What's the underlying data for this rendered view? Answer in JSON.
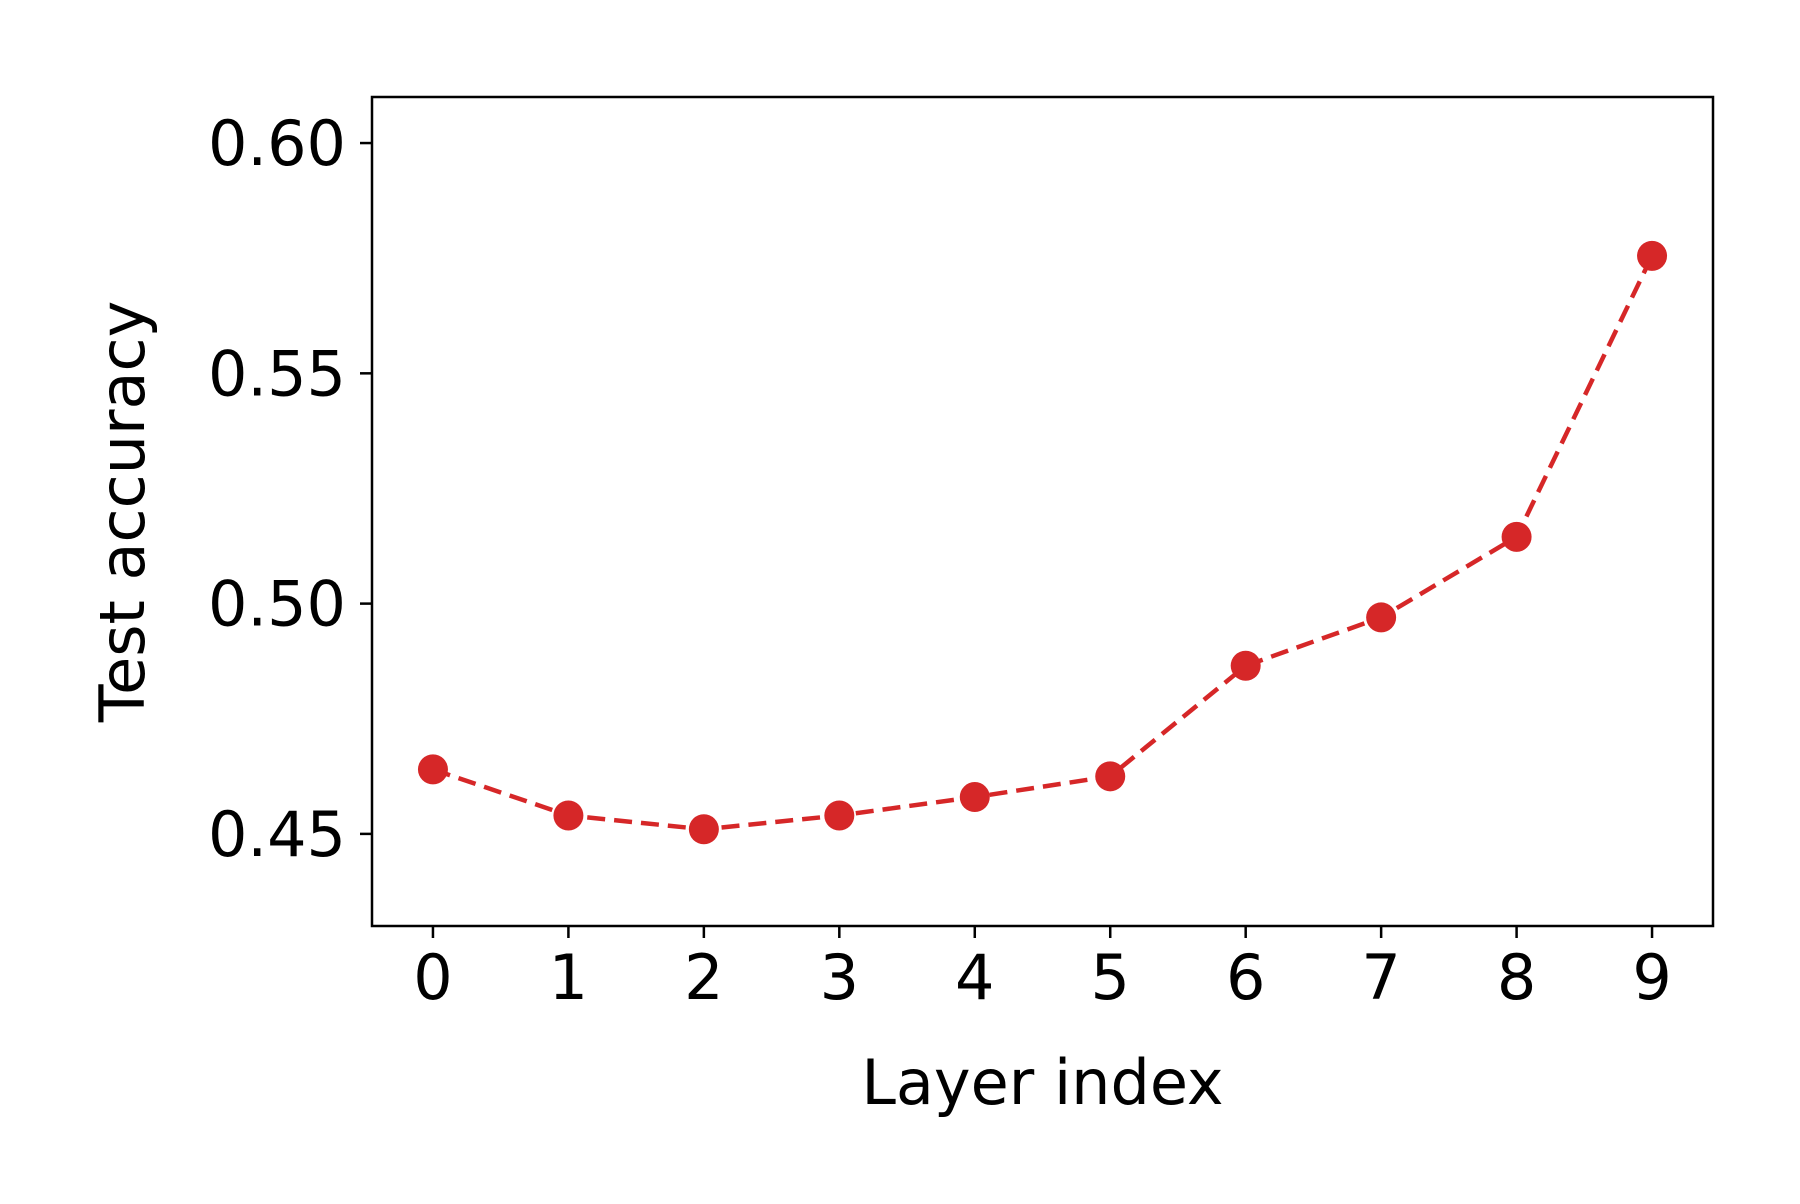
{
  "chart_data": {
    "type": "line",
    "title": "",
    "xlabel": "Layer index",
    "ylabel": "Test accuracy",
    "x": [
      0,
      1,
      2,
      3,
      4,
      5,
      6,
      7,
      8,
      9
    ],
    "x_tick_labels": [
      "0",
      "1",
      "2",
      "3",
      "4",
      "5",
      "6",
      "7",
      "8",
      "9"
    ],
    "y_ticks": [
      0.45,
      0.5,
      0.55,
      0.6
    ],
    "y_tick_labels": [
      "0.45",
      "0.50",
      "0.55",
      "0.60"
    ],
    "xlim": [
      -0.45,
      9.45
    ],
    "ylim": [
      0.43,
      0.61
    ],
    "grid": false,
    "series": [
      {
        "color": "#d62728",
        "line_style": "dashed",
        "marker": "circle",
        "values": [
          0.464,
          0.454,
          0.451,
          0.454,
          0.458,
          0.4625,
          0.4865,
          0.497,
          0.5145,
          0.5755
        ]
      }
    ]
  }
}
